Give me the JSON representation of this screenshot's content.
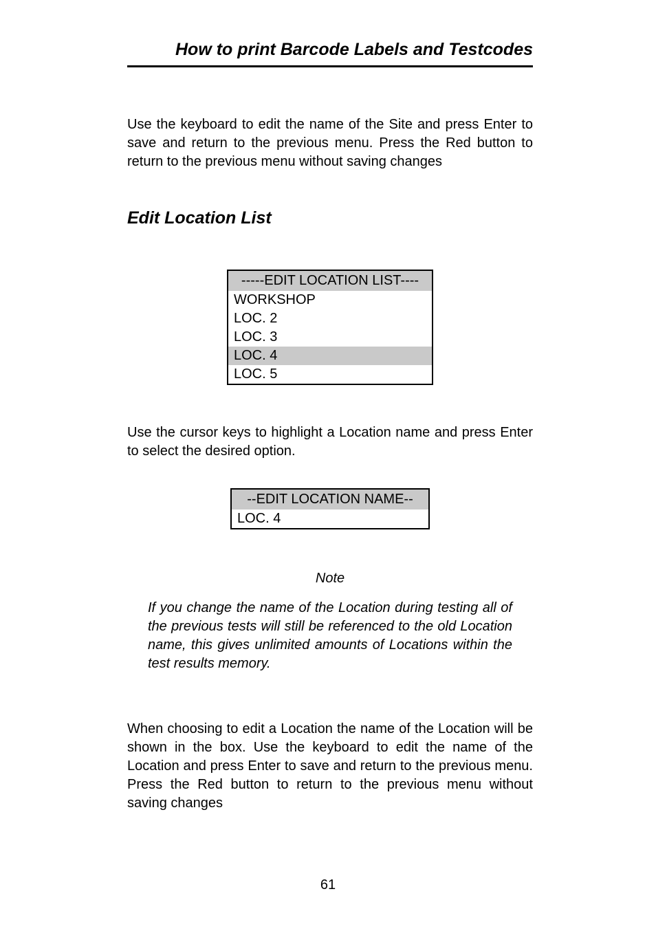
{
  "header": {
    "title": "How to print Barcode Labels and Testcodes"
  },
  "intro_paragraph": "Use the keyboard to edit the name of the Site and press Enter to save and return to the previous menu. Press the Red button to return to the previous menu without saving changes",
  "section_heading": "Edit Location List",
  "screen1": {
    "title": "-----EDIT LOCATION LIST----",
    "rows": [
      {
        "label": "WORKSHOP",
        "selected": false
      },
      {
        "label": "LOC. 2",
        "selected": false
      },
      {
        "label": "LOC. 3",
        "selected": false
      },
      {
        "label": "LOC. 4",
        "selected": true
      },
      {
        "label": "LOC. 5",
        "selected": false
      }
    ]
  },
  "mid_paragraph": "Use the cursor keys to highlight a Location name and press Enter to select the desired option.",
  "screen2": {
    "title": "--EDIT LOCATION NAME--",
    "value": "LOC. 4"
  },
  "note": {
    "label": "Note",
    "body": "If you change the name of the Location during testing all of the previous tests will still be referenced to the old Location name, this gives unlimited amounts of Locations within the test results memory."
  },
  "closing_paragraph": "When choosing to edit a Location the name of the Location will be shown in the box.  Use the keyboard to edit the name of the Location and press Enter to save and return to the previous menu. Press the Red button to return to the previous menu without saving changes",
  "page_number": "61"
}
